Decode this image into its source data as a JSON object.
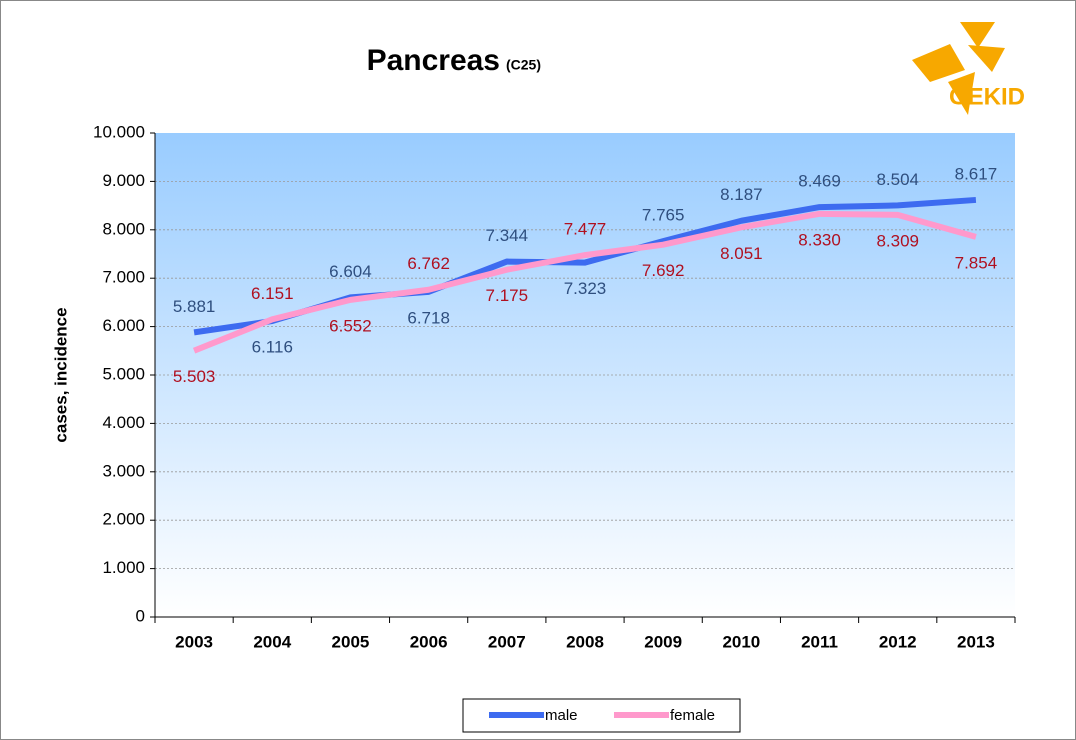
{
  "chart_data": {
    "type": "line",
    "title": "Pancreas",
    "subtitle": "(C25)",
    "logo_text": "GEKID",
    "y_label": "cases, incidence",
    "categories": [
      "2003",
      "2004",
      "2005",
      "2006",
      "2007",
      "2008",
      "2009",
      "2010",
      "2011",
      "2012",
      "2013"
    ],
    "series": [
      {
        "name": "male",
        "color": "#3d6bf0",
        "label_color": "#2f4f7f",
        "values": [
          5881,
          6116,
          6604,
          6718,
          7344,
          7323,
          7765,
          8187,
          8469,
          8504,
          8617
        ],
        "value_labels": [
          "5.881",
          "6.116",
          "6.604",
          "6.718",
          "7.344",
          "7.323",
          "7.765",
          "8.187",
          "8.469",
          "8.504",
          "8.617"
        ]
      },
      {
        "name": "female",
        "color": "#ff99cc",
        "label_color": "#b01020",
        "values": [
          5503,
          6151,
          6552,
          6762,
          7175,
          7477,
          7692,
          8051,
          8330,
          8309,
          7854
        ],
        "value_labels": [
          "5.503",
          "6.151",
          "6.552",
          "6.762",
          "7.175",
          "7.477",
          "7.692",
          "8.051",
          "8.330",
          "8.309",
          "7.854"
        ]
      }
    ],
    "ylim": [
      0,
      10000
    ],
    "yticks": [
      0,
      {
        "value": 1000,
        "label": "1.000"
      },
      {
        "value": 2000,
        "label": "2.000"
      },
      {
        "value": 3000,
        "label": "3.000"
      },
      {
        "value": 4000,
        "label": "4.000"
      },
      {
        "value": 5000,
        "label": "5.000"
      },
      {
        "value": 6000,
        "label": "6.000"
      },
      {
        "value": 7000,
        "label": "7.000"
      },
      {
        "value": 8000,
        "label": "8.000"
      },
      {
        "value": 9000,
        "label": "9.000"
      },
      {
        "value": 10000,
        "label": "10.000"
      }
    ],
    "grid": true,
    "legend": "bottom"
  }
}
